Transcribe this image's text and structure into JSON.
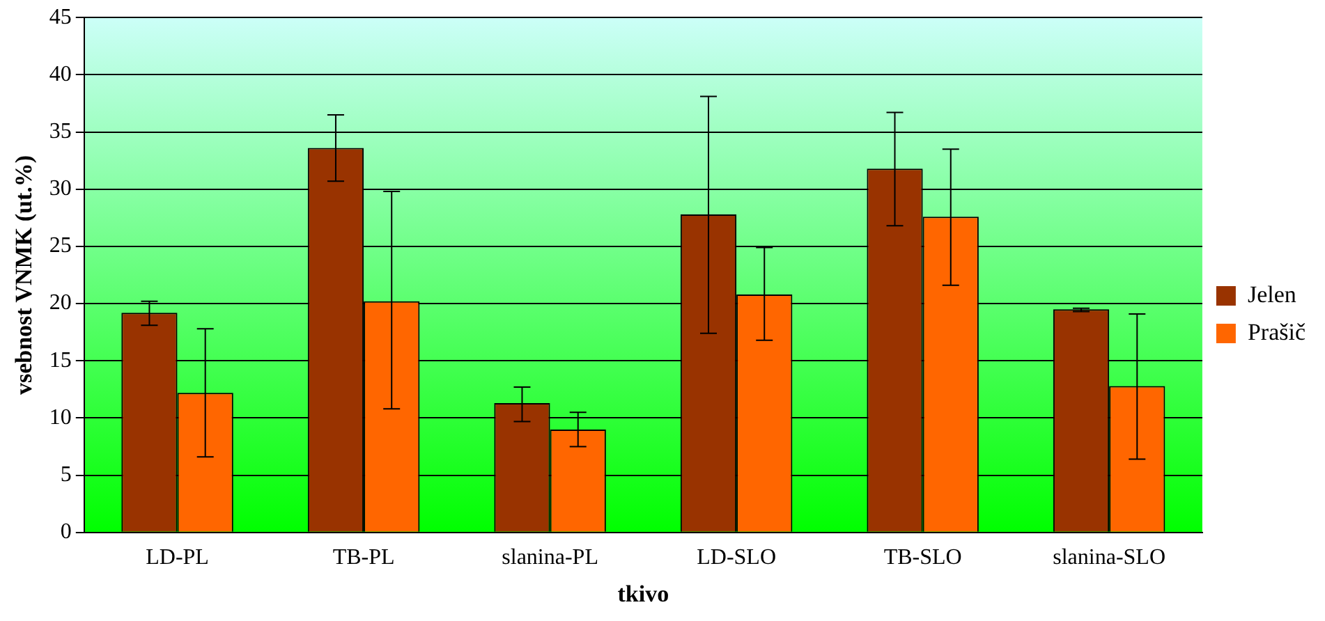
{
  "chart_data": {
    "type": "bar",
    "xlabel": "tkivo",
    "ylabel": "vsebnost VNMK (ut.%)",
    "categories": [
      "LD-PL",
      "TB-PL",
      "slanina-PL",
      "LD-SLO",
      "TB-SLO",
      "slanina-SLO"
    ],
    "series": [
      {
        "name": "Jelen",
        "color": "#993300",
        "values": [
          19.2,
          33.6,
          11.3,
          27.8,
          31.8,
          19.5
        ],
        "errors": [
          [
            18.1,
            20.2
          ],
          [
            30.7,
            36.5
          ],
          [
            9.7,
            12.7
          ],
          [
            17.4,
            38.1
          ],
          [
            26.8,
            36.7
          ],
          [
            19.3,
            19.6
          ]
        ]
      },
      {
        "name": "Prašič",
        "color": "#ff6600",
        "values": [
          12.2,
          20.2,
          9.0,
          20.8,
          27.6,
          12.8
        ],
        "errors": [
          [
            6.6,
            17.8
          ],
          [
            10.8,
            29.8
          ],
          [
            7.5,
            10.5
          ],
          [
            16.8,
            24.9
          ],
          [
            21.6,
            33.5
          ],
          [
            6.4,
            19.1
          ]
        ]
      }
    ],
    "ylim": [
      0,
      45
    ],
    "yticks": [
      0,
      5,
      10,
      15,
      20,
      25,
      30,
      35,
      40,
      45
    ],
    "grid": "y",
    "legend": "right"
  }
}
